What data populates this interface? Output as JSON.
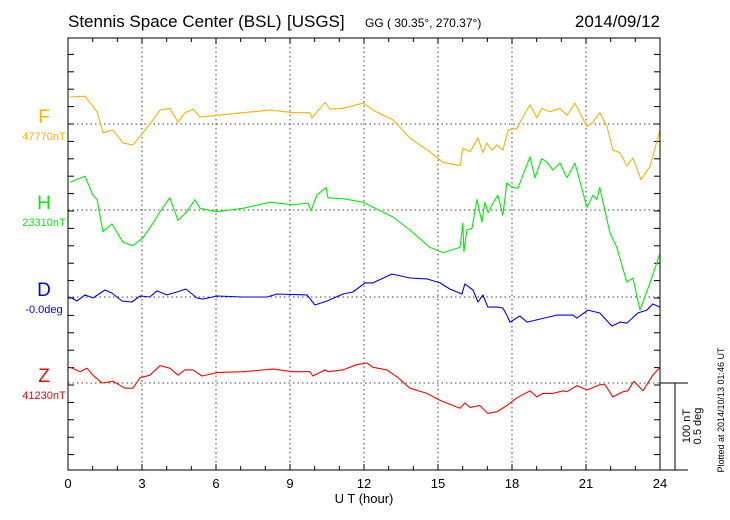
{
  "header": {
    "station": "Stennis Space Center (BSL)",
    "network": "[USGS]",
    "coords": "GG ( 30.35°, 270.37°)",
    "date": "2014/09/12"
  },
  "scale_bar": {
    "line1": "100 nT",
    "line2": "0.5 deg"
  },
  "plotted_note": "Plotted at 2014/10/13 01:46 UT",
  "chart_data": {
    "type": "line",
    "xlabel": "U T (hour)",
    "xlim": [
      0,
      24
    ],
    "xticks": [
      "0",
      "3",
      "6",
      "9",
      "12",
      "15",
      "18",
      "21",
      "24"
    ],
    "grid": true,
    "scale": {
      "nT_per_division": 100,
      "deg_per_division": 0.5
    },
    "series": [
      {
        "name": "F",
        "baseline_label": "47770nT",
        "unit": "nT",
        "color": "#ffb000",
        "x": [
          0.08,
          0.69,
          1.18,
          1.42,
          1.82,
          2.23,
          2.63,
          3.04,
          3.45,
          3.73,
          4.13,
          4.46,
          4.74,
          5.07,
          5.35,
          6.04,
          7.09,
          8.19,
          9.12,
          9.81,
          9.89,
          10.42,
          10.62,
          11.15,
          11.96,
          12.36,
          13.17,
          13.86,
          14.67,
          15.2,
          15.89,
          16.01,
          16.3,
          16.62,
          16.82,
          16.98,
          17.19,
          17.39,
          17.63,
          17.84,
          18.2,
          18.44,
          18.73,
          19.01,
          19.21,
          19.54,
          19.94,
          20.23,
          20.55,
          21.04,
          21.28,
          21.56,
          21.85,
          22.09,
          22.38,
          22.66,
          22.9,
          23.23,
          23.59,
          24
        ],
        "y": [
          31,
          32,
          14,
          -10,
          -7,
          -22,
          -24,
          -10,
          5,
          16,
          18,
          2,
          13,
          17,
          8,
          10,
          13,
          16,
          13,
          13,
          7,
          25,
          17,
          18,
          24,
          16,
          5,
          -16,
          -32,
          -44,
          -48,
          -28,
          -32,
          -16,
          -33,
          -22,
          -30,
          -24,
          -30,
          -7,
          -5,
          8,
          22,
          7,
          18,
          14,
          18,
          10,
          24,
          -3,
          2,
          13,
          -3,
          -30,
          -33,
          -48,
          -39,
          -64,
          -49,
          -7
        ]
      },
      {
        "name": "H",
        "baseline_label": "23310nT",
        "unit": "nT",
        "color": "#00ee00",
        "x": [
          0.08,
          0.69,
          1.01,
          1.18,
          1.42,
          1.78,
          2.23,
          2.63,
          3.04,
          3.45,
          3.73,
          4.13,
          4.46,
          4.82,
          5.15,
          5.35,
          6.04,
          7.09,
          8.19,
          9.12,
          9.73,
          9.85,
          10.09,
          10.46,
          10.54,
          11.15,
          11.96,
          13.17,
          13.86,
          14.67,
          15.2,
          15.89,
          16.01,
          16.05,
          16.17,
          16.38,
          16.58,
          16.78,
          16.9,
          17.03,
          17.23,
          17.43,
          17.63,
          17.79,
          18.04,
          18.24,
          18.44,
          18.73,
          18.93,
          19.21,
          19.42,
          19.66,
          19.94,
          20.23,
          20.55,
          21.04,
          21.28,
          21.44,
          21.56,
          21.97,
          22.25,
          22.66,
          22.9,
          23.19,
          23.59,
          24
        ],
        "y": [
          32,
          39,
          17,
          12,
          -25,
          -16,
          -37,
          -41,
          -32,
          -15,
          -2,
          14,
          -12,
          -2,
          12,
          2,
          -2,
          2,
          9,
          6,
          8,
          -1,
          17,
          26,
          14,
          13,
          9,
          -8,
          -23,
          -43,
          -49,
          -43,
          -15,
          -48,
          -23,
          -21,
          12,
          -14,
          9,
          -3,
          8,
          17,
          -6,
          31,
          26,
          25,
          40,
          61,
          37,
          59,
          55,
          46,
          54,
          37,
          54,
          3,
          17,
          12,
          26,
          -26,
          -43,
          -83,
          -78,
          -115,
          -84,
          -50
        ]
      },
      {
        "name": "D",
        "baseline_label": "-0.0deg",
        "unit": "deg",
        "color": "#0000ee",
        "x": [
          0.08,
          0.36,
          0.69,
          1.01,
          1.5,
          1.78,
          2.19,
          2.59,
          2.92,
          3.32,
          3.61,
          4.01,
          4.42,
          4.78,
          5.23,
          5.47,
          6.04,
          7.09,
          8.07,
          8.47,
          9.69,
          10.01,
          10.5,
          11.15,
          11.55,
          12.04,
          12.36,
          13.13,
          13.86,
          14.55,
          15.08,
          15.48,
          15.97,
          16.09,
          16.42,
          16.62,
          16.82,
          17.02,
          17.39,
          17.63,
          17.79,
          17.92,
          18.32,
          18.61,
          19.13,
          19.82,
          20.47,
          20.63,
          21.08,
          21.56,
          22.05,
          22.38,
          22.66,
          23.1,
          23.47,
          23.71,
          24
        ],
        "y": [
          0,
          -0.023,
          0.012,
          -0.006,
          0.04,
          0.023,
          -0.023,
          -0.029,
          0.006,
          0,
          0.035,
          0.012,
          0.029,
          0.046,
          -0.006,
          -0.012,
          0.006,
          0,
          0,
          0.017,
          0.012,
          -0.046,
          -0.023,
          0.017,
          0.029,
          0.081,
          0.081,
          0.132,
          0.109,
          0.104,
          0.081,
          0.046,
          0.017,
          0.075,
          0.04,
          -0.029,
          0.012,
          -0.058,
          -0.058,
          -0.063,
          -0.104,
          -0.144,
          -0.109,
          -0.144,
          -0.127,
          -0.104,
          -0.104,
          -0.121,
          -0.075,
          -0.092,
          -0.167,
          -0.144,
          -0.15,
          -0.092,
          -0.075,
          -0.04,
          -0.058
        ]
      },
      {
        "name": "Z",
        "baseline_label": "41230nT",
        "unit": "nT",
        "color": "#ff0000",
        "x": [
          0.08,
          0.49,
          0.77,
          1.01,
          1.38,
          1.82,
          2.31,
          2.63,
          2.92,
          3.32,
          3.73,
          4.13,
          4.46,
          4.74,
          5.07,
          5.43,
          6.04,
          7.09,
          8.31,
          9.12,
          9.81,
          9.93,
          10.42,
          10.54,
          11.15,
          11.71,
          12.12,
          12.36,
          12.93,
          13.34,
          13.86,
          14.55,
          15.08,
          15.89,
          16.09,
          16.3,
          16.7,
          17.02,
          17.39,
          17.79,
          18.2,
          18.73,
          19.01,
          19.25,
          19.66,
          20.07,
          20.23,
          20.63,
          21.04,
          21.56,
          21.77,
          22.09,
          22.5,
          22.7,
          22.94,
          23.31,
          23.71,
          24
        ],
        "y": [
          18,
          13,
          17,
          9,
          0,
          2,
          -6,
          -6,
          6,
          9,
          20,
          17,
          9,
          15,
          15,
          8,
          12,
          13,
          16,
          13,
          13,
          8,
          15,
          13,
          15,
          21,
          23,
          18,
          15,
          7,
          -6,
          -12,
          -20,
          -29,
          -23,
          -28,
          -26,
          -35,
          -33,
          -26,
          -17,
          -9,
          -16,
          -12,
          -12,
          -9,
          -10,
          -3,
          -8,
          -2,
          -2,
          -16,
          -10,
          -9,
          2,
          -9,
          9,
          18
        ]
      }
    ]
  }
}
